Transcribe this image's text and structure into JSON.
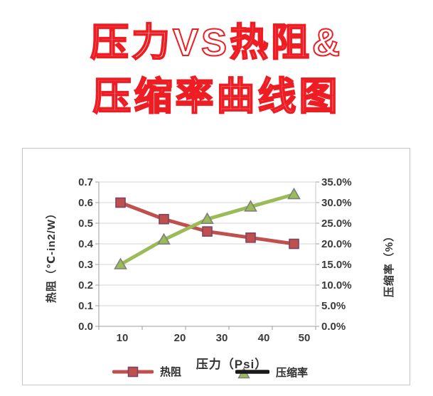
{
  "title": {
    "line1": "压力VS热阻&",
    "line2": "压缩率曲线图",
    "color": "#ee1d23"
  },
  "chart_data": {
    "type": "line",
    "xlabel": "压力（Psi）",
    "ylabel_left": "热阻（℃-in2/W）",
    "ylabel_right": "压缩率（%）",
    "x_tick_labels": [
      "10",
      "20",
      "30",
      "40",
      "50"
    ],
    "y_left": {
      "min": 0.0,
      "max": 0.7,
      "ticks": [
        "0.7",
        "0.6",
        "0.5",
        "0.4",
        "0.3",
        "0.2",
        "0.1",
        "0.0"
      ]
    },
    "y_right": {
      "min": 0,
      "max": 35,
      "unit": "%",
      "ticks": [
        "35.0%",
        "30.0%",
        "25.0%",
        "20.0%",
        "15.0%",
        "10.0%",
        "5.0%",
        "0.0%"
      ]
    },
    "grid": true,
    "legend_position": "bottom",
    "series": [
      {
        "name": "热阻",
        "axis": "left",
        "marker": "square",
        "color": "#c0504d",
        "marker_border": "#7a4462",
        "values": [
          0.6,
          0.52,
          0.46,
          0.43,
          0.4
        ]
      },
      {
        "name": "压缩率",
        "axis": "right",
        "marker": "triangle",
        "color": "#9bbb59",
        "marker_border": "#7f7f7f",
        "legend_line_color": "#1a1a1a",
        "values": [
          15.0,
          21.0,
          26.0,
          29.0,
          32.0
        ]
      }
    ],
    "colors": {
      "gridline": "#d6d6d6",
      "axis": "#9e9e9e",
      "axis_right": "#c9c9c9"
    }
  }
}
